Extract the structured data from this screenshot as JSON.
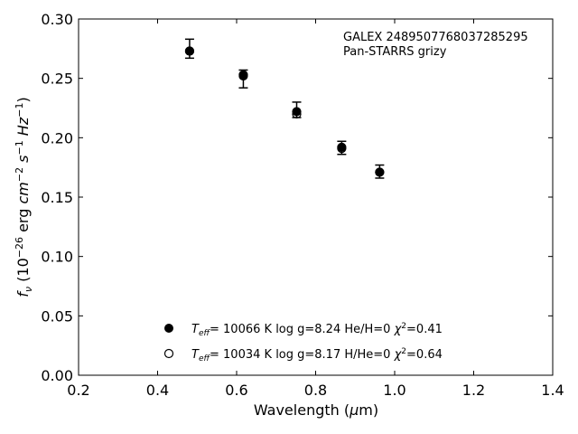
{
  "chart_data": {
    "type": "scatter",
    "xlabel": "Wavelength (μm)",
    "ylabel": "f_ν (10⁻²⁶ erg cm⁻² s⁻¹ Hz⁻¹)",
    "xlim": [
      0.2,
      1.4
    ],
    "ylim": [
      0.0,
      0.3
    ],
    "x_ticks": [
      "0.2",
      "0.4",
      "0.6",
      "0.8",
      "1.0",
      "1.2",
      "1.4"
    ],
    "y_ticks": [
      "0.00",
      "0.05",
      "0.10",
      "0.15",
      "0.20",
      "0.25",
      "0.30"
    ],
    "grid": false,
    "annotation": [
      "GALEX 2489507768037285295",
      "Pan-STARRS grizy"
    ],
    "observed": {
      "x": [
        0.481,
        0.617,
        0.752,
        0.866,
        0.962
      ],
      "y": [
        0.274,
        0.25,
        0.222,
        0.192,
        0.172
      ],
      "yerr_low": [
        0.267,
        0.242,
        0.217,
        0.186,
        0.166
      ],
      "yerr_high": [
        0.283,
        0.257,
        0.23,
        0.197,
        0.177
      ]
    },
    "series": [
      {
        "name": "Teff= 10066 K  log g=8.24  He/H=0  χ²=0.41",
        "marker": "filled-circle",
        "color": "#000000",
        "x": [
          0.481,
          0.617,
          0.752,
          0.866,
          0.962
        ],
        "y": [
          0.273,
          0.253,
          0.222,
          0.192,
          0.171
        ]
      },
      {
        "name": "Teff= 10034 K  log g=8.17  H/He=0  χ²=0.64",
        "marker": "open-circle",
        "color": "#000000",
        "x": [
          0.481,
          0.617,
          0.752,
          0.866,
          0.962
        ],
        "y": [
          0.273,
          0.252,
          0.22,
          0.191,
          0.171
        ]
      }
    ],
    "legend": {
      "placement": "lower-center",
      "entries": [
        {
          "teff": "= 10066 K",
          "rest": "log g=8.24  He/H=0",
          "chi": "=0.41"
        },
        {
          "teff": "= 10034 K",
          "rest": "log g=8.17  H/He=0",
          "chi": "=0.64"
        }
      ]
    }
  }
}
